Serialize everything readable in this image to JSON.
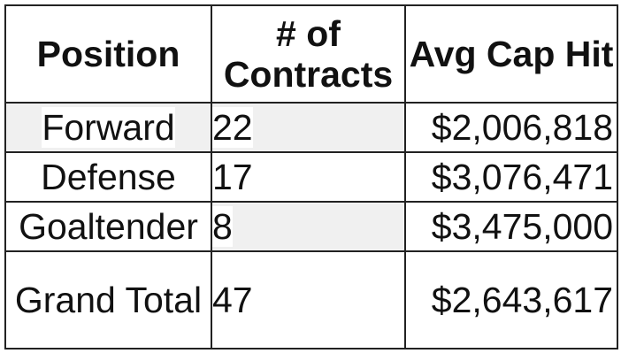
{
  "table": {
    "header": [
      "Position",
      "# of Contracts",
      "Avg Cap Hit"
    ],
    "rows": [
      [
        "Forward",
        "22",
        "$2,006,818"
      ],
      [
        "Defense",
        "17",
        "$3,076,471"
      ],
      [
        "Goaltender",
        "8",
        "$3,475,000"
      ],
      [
        "Grand Total",
        "47",
        "$2,643,617"
      ]
    ]
  }
}
